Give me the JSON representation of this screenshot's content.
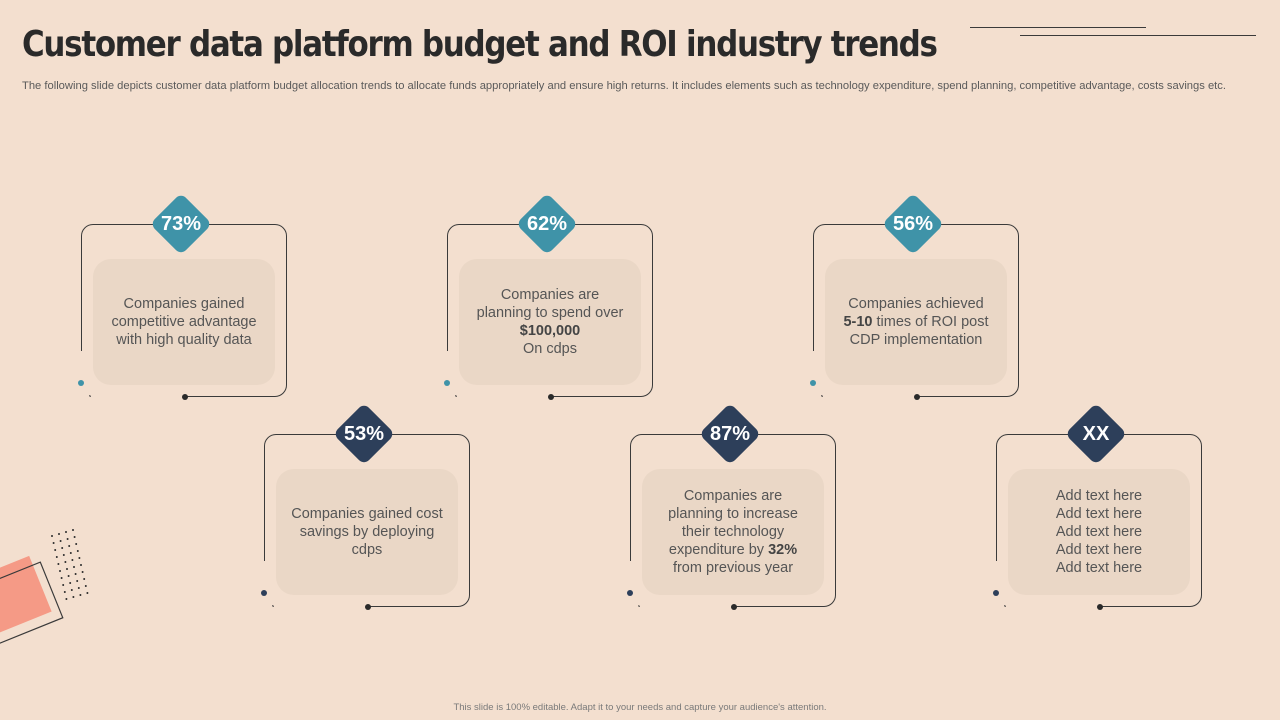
{
  "title": "Customer data platform budget and ROI industry trends",
  "subtitle": "The following slide depicts customer data platform budget allocation trends to allocate funds appropriately and ensure high returns. It includes elements such as technology expenditure, spend planning, competitive advantage, costs savings etc.",
  "footer": "This slide is 100% editable. Adapt it to your needs and capture your audience's attention.",
  "colors": {
    "teal": "#3f93a8",
    "navy": "#2d3f5a",
    "background": "#f3dfcf",
    "accent_coral": "#f59a86"
  },
  "cards": [
    {
      "badge": "73%",
      "color": "teal",
      "lines": [
        "Companies gained competitive advantage with high quality data"
      ]
    },
    {
      "badge": "62%",
      "color": "teal",
      "pre": "Companies are planning to spend over ",
      "bold": "$100,000",
      "post": " On cdps"
    },
    {
      "badge": "56%",
      "color": "teal",
      "pre": "Companies achieved ",
      "bold": "5-10",
      "post": " times of ROI post CDP implementation"
    },
    {
      "badge": "53%",
      "color": "navy",
      "lines": [
        "Companies gained cost savings by deploying cdps"
      ]
    },
    {
      "badge": "87%",
      "color": "navy",
      "pre": "Companies are planning to increase their technology expenditure by ",
      "bold": "32%",
      "post": " from previous year"
    },
    {
      "badge": "XX",
      "color": "navy",
      "lines": [
        "Add text here",
        "Add text here",
        "Add text here",
        "Add text here",
        "Add text here"
      ]
    }
  ]
}
